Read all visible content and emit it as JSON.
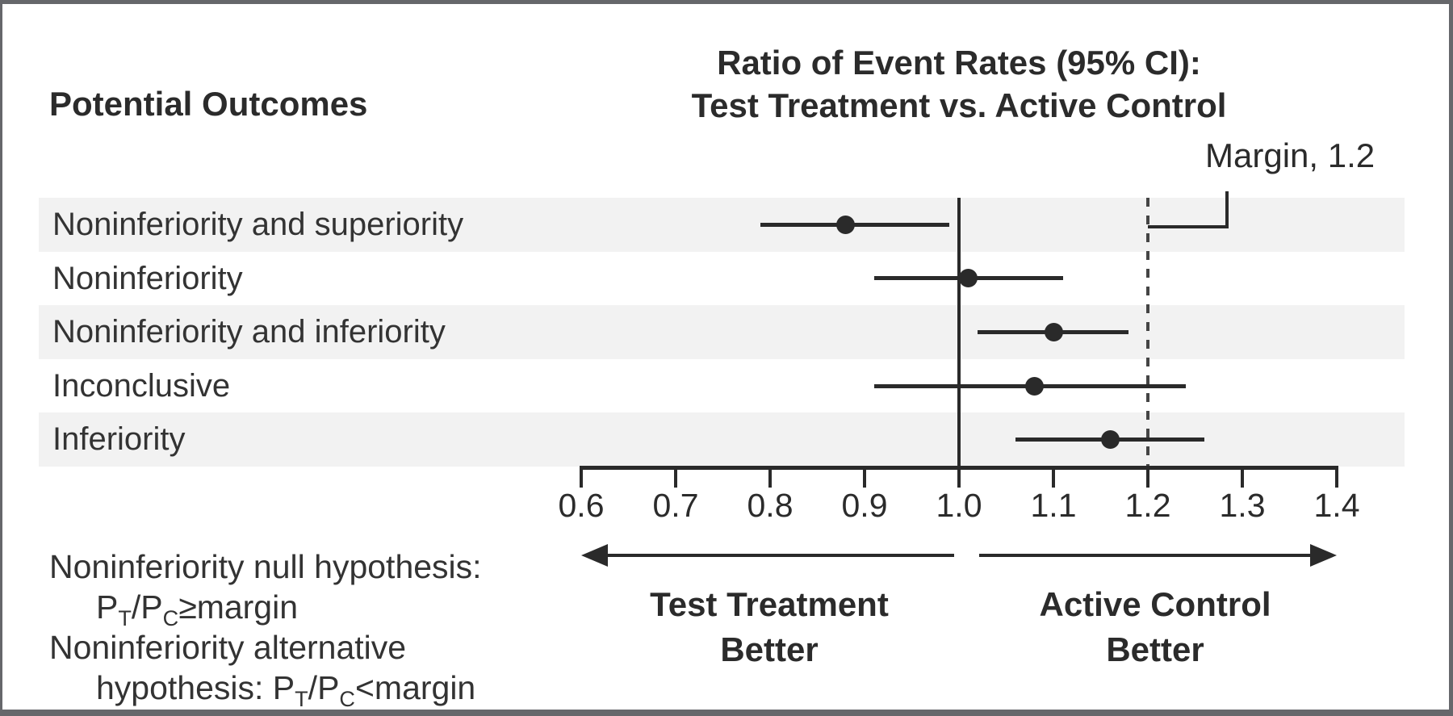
{
  "left_column": {
    "header": "Potential Outcomes"
  },
  "chart_data": {
    "type": "scatter",
    "subtype": "forest plot (point estimate with 95% CI per row)",
    "title_lines": [
      "Ratio of Event Rates (95% CI):",
      "Test Treatment vs. Active Control"
    ],
    "x_axis": {
      "min": 0.6,
      "max": 1.4,
      "tick_labels": [
        "0.6",
        "0.7",
        "0.8",
        "0.9",
        "1.0",
        "1.1",
        "1.2",
        "1.3",
        "1.4"
      ],
      "grid": false
    },
    "reference_lines": [
      {
        "value": 1.0,
        "style": "solid"
      },
      {
        "value": 1.2,
        "style": "dotted",
        "label": "Margin, 1.2"
      }
    ],
    "rows": [
      {
        "label": "Noninferiority and superiority",
        "estimate": 0.88,
        "ci_low": 0.79,
        "ci_high": 0.99
      },
      {
        "label": "Noninferiority",
        "estimate": 1.01,
        "ci_low": 0.91,
        "ci_high": 1.11
      },
      {
        "label": "Noninferiority and inferiority",
        "estimate": 1.1,
        "ci_low": 1.02,
        "ci_high": 1.18
      },
      {
        "label": "Inconclusive",
        "estimate": 1.08,
        "ci_low": 0.91,
        "ci_high": 1.24
      },
      {
        "label": "Inferiority",
        "estimate": 1.16,
        "ci_low": 1.06,
        "ci_high": 1.26
      }
    ],
    "direction_labels": {
      "left": [
        "Test Treatment",
        "Better"
      ],
      "right": [
        "Active Control",
        "Better"
      ]
    },
    "legend_position": "none"
  },
  "footnotes": {
    "lines": [
      {
        "text": "Noninferiority null hypothesis:",
        "indent": false
      },
      {
        "text": "P~T~/P~C~≥margin",
        "indent": true
      },
      {
        "text": "Noninferiority alternative",
        "indent": false
      },
      {
        "text": "hypothesis: P~T~/P~C~<margin",
        "indent": true
      }
    ]
  },
  "colors": {
    "ink": "#2a2a2a",
    "text": "#2d2d2d",
    "row_band": "#f2f2f2",
    "frame": "#66676b",
    "background": "#ffffff"
  }
}
